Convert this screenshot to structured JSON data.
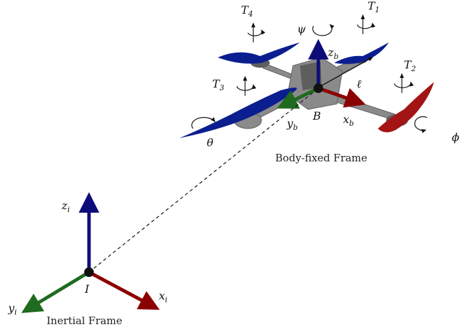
{
  "colors": {
    "x_axis": "#8b0000",
    "y_axis": "#1f6b1f",
    "z_axis": "#0d0d7a",
    "blue_prop": "#0b1e8f",
    "red_prop": "#a31515",
    "frame": "#8a8a8a",
    "frame_dark": "#5e5e5e"
  },
  "labels": {
    "T1": {
      "base": "T",
      "sub": "1"
    },
    "T2": {
      "base": "T",
      "sub": "2"
    },
    "T3": {
      "base": "T",
      "sub": "3"
    },
    "T4": {
      "base": "T",
      "sub": "4"
    },
    "psi": "ψ",
    "theta": "θ",
    "phi": "ϕ",
    "ell": "ℓ",
    "B": "B",
    "I": "I",
    "xb": {
      "base": "x",
      "sub": "b"
    },
    "yb": {
      "base": "y",
      "sub": "b"
    },
    "zb": {
      "base": "z",
      "sub": "b"
    },
    "xi": {
      "base": "x",
      "sub": "i"
    },
    "yi": {
      "base": "y",
      "sub": "i"
    },
    "zi": {
      "base": "z",
      "sub": "i"
    }
  },
  "captions": {
    "body_frame": "Body-fixed Frame",
    "inertial_frame": "Inertial Frame"
  }
}
